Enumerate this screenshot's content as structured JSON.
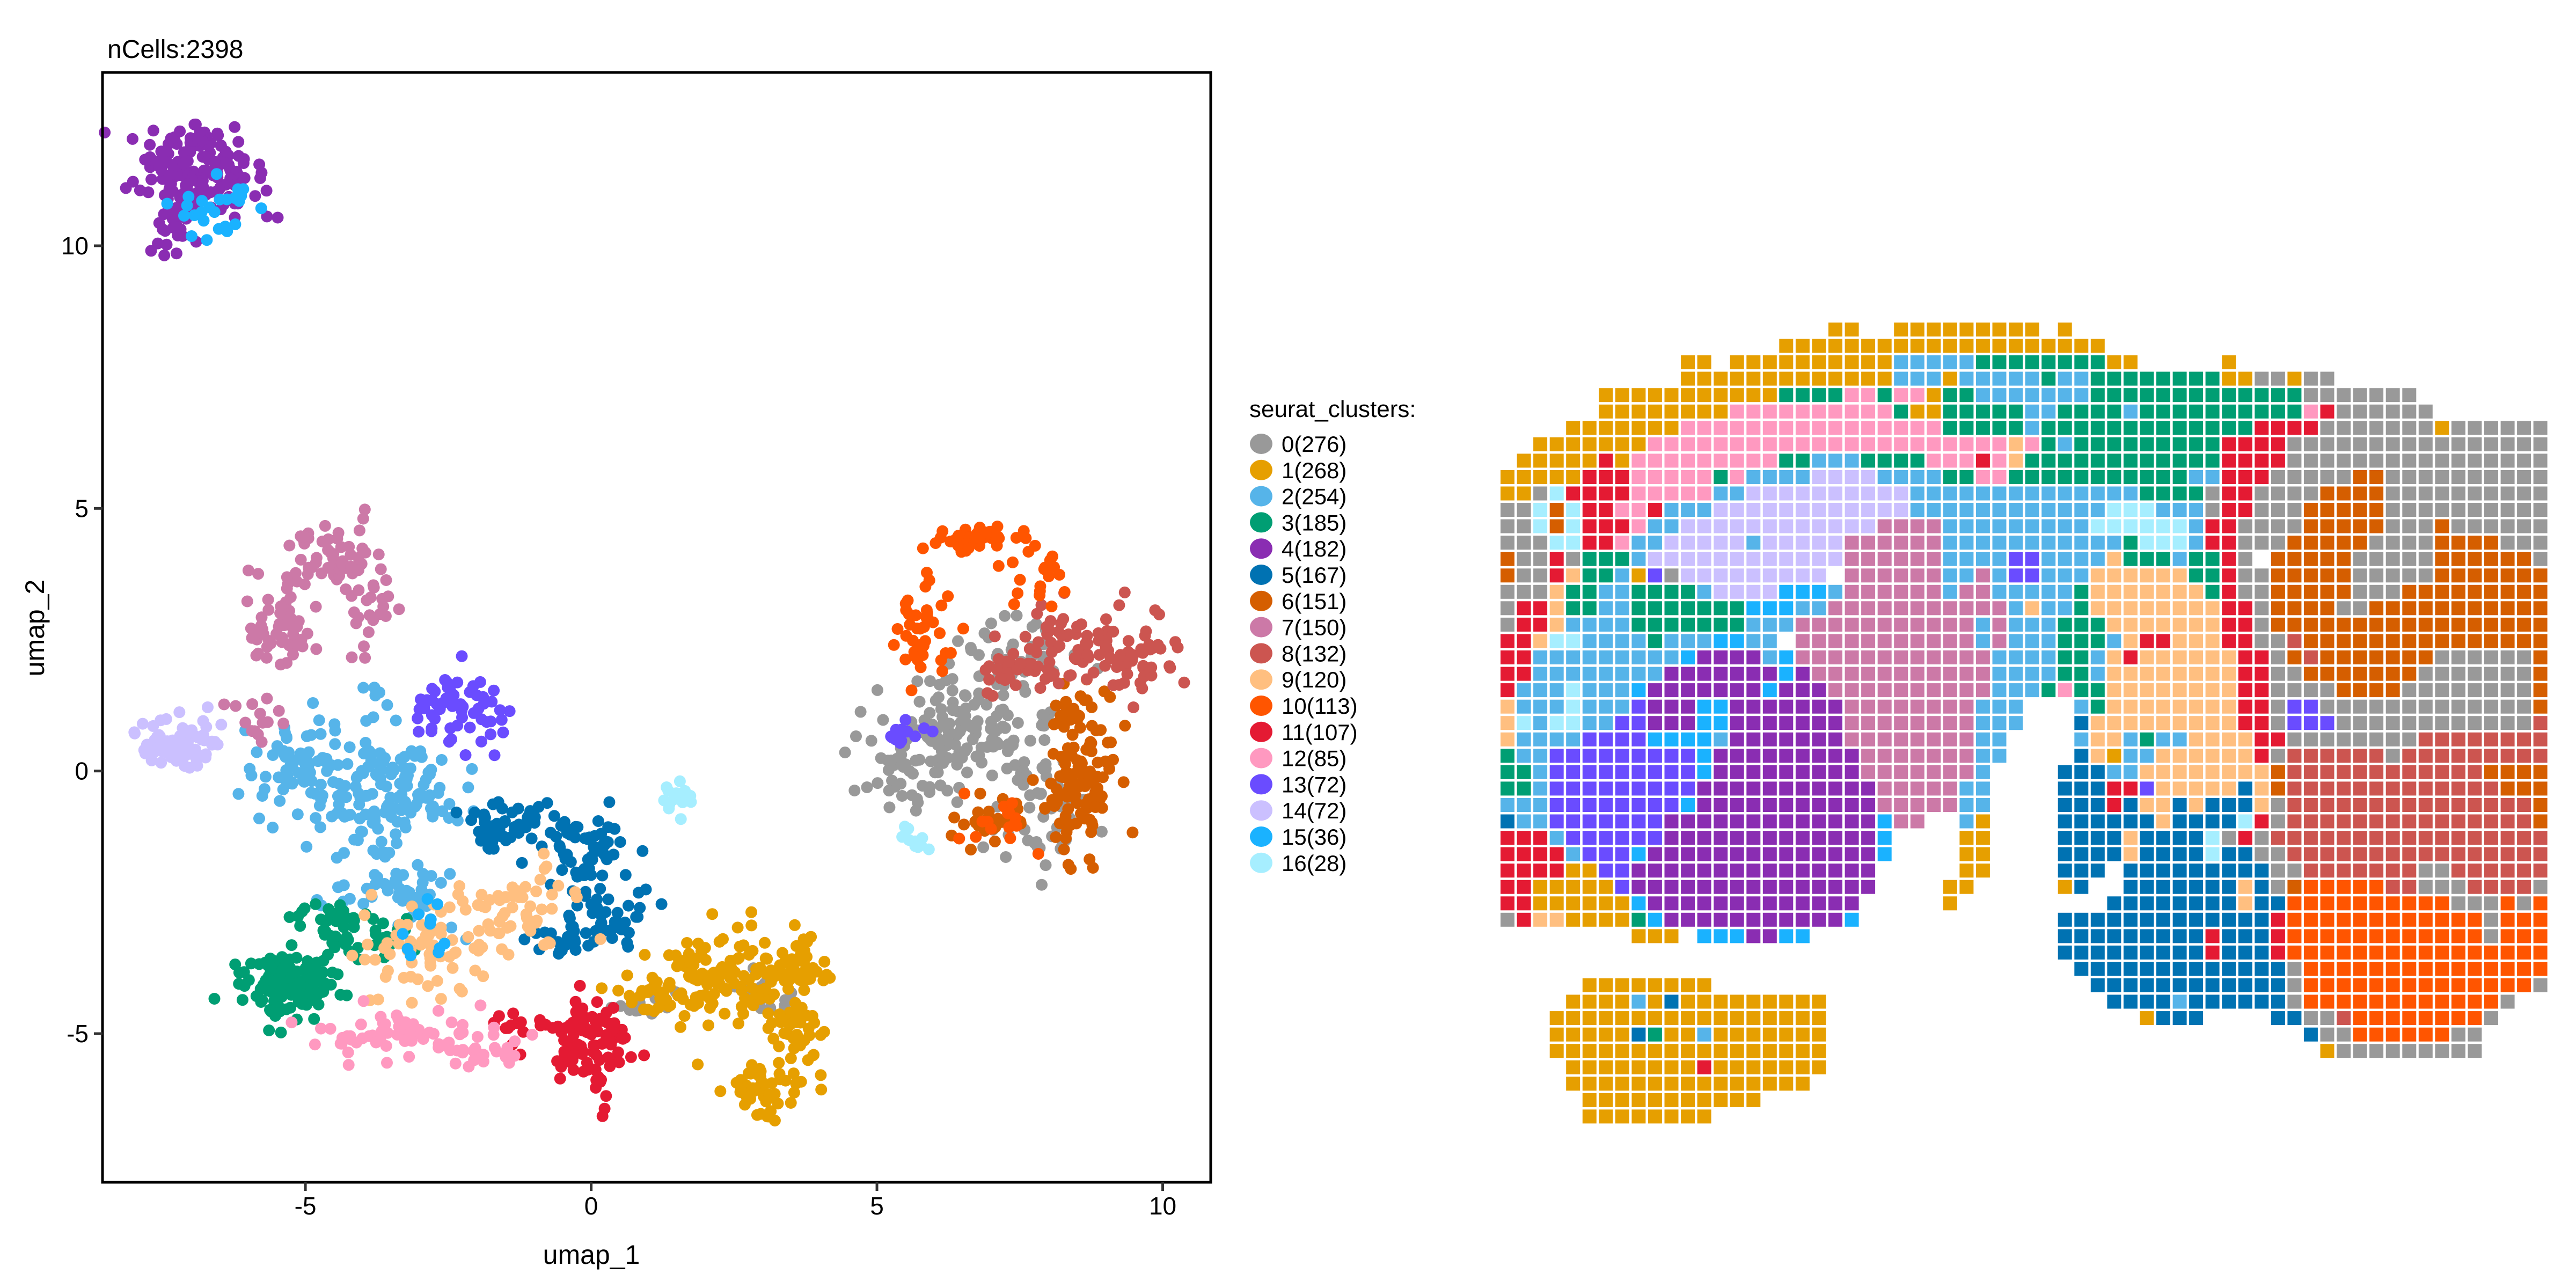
{
  "chart_data": [
    {
      "type": "scatter",
      "title": "nCells:2398",
      "xlabel": "umap_1",
      "ylabel": "umap_2",
      "xlim": [
        -8.55,
        10.84
      ],
      "ylim": [
        -7.83,
        13.3
      ],
      "xticks": [
        -5,
        0,
        5,
        10
      ],
      "yticks": [
        -5,
        0,
        5,
        10
      ],
      "grid": false,
      "legend": {
        "title": "seurat_clusters:",
        "placement": "right",
        "items": [
          "0(276)",
          "1(268)",
          "2(254)",
          "3(185)",
          "4(182)",
          "5(167)",
          "6(151)",
          "7(150)",
          "8(132)",
          "9(120)",
          "10(113)",
          "11(107)",
          "12(85)",
          "13(72)",
          "14(72)",
          "15(36)",
          "16(28)"
        ]
      },
      "clusters": [
        {
          "id": 0,
          "count": 276,
          "color": "#999999",
          "regions": [
            [
              6.3,
              0.6,
              0.8,
              0.6,
              0.55
            ],
            [
              7.9,
              -0.9,
              0.4,
              0.5,
              0.15
            ],
            [
              7.3,
              2.2,
              0.6,
              0.4,
              0.15
            ],
            [
              5.3,
              -0.3,
              0.3,
              0.3,
              0.05
            ],
            [
              2.9,
              -4.3,
              0.3,
              0.2,
              0.05
            ],
            [
              0.9,
              -4.4,
              0.3,
              0.15,
              0.05
            ]
          ]
        },
        {
          "id": 1,
          "count": 268,
          "color": "#E69F00",
          "regions": [
            [
              2.2,
              -3.9,
              0.7,
              0.4,
              0.4
            ],
            [
              3.5,
              -3.7,
              0.3,
              0.3,
              0.15
            ],
            [
              3.6,
              -5.0,
              0.25,
              0.4,
              0.15
            ],
            [
              3.1,
              -6.1,
              0.4,
              0.3,
              0.2
            ],
            [
              1.3,
              -4.3,
              0.3,
              0.2,
              0.1
            ]
          ]
        },
        {
          "id": 2,
          "count": 254,
          "color": "#56B4E9",
          "regions": [
            [
              -4.0,
              -0.5,
              0.6,
              0.9,
              0.5
            ],
            [
              -5.2,
              0.0,
              0.4,
              0.5,
              0.2
            ],
            [
              -2.8,
              -0.4,
              0.4,
              0.4,
              0.15
            ],
            [
              -3.2,
              -2.3,
              0.5,
              0.3,
              0.15
            ]
          ]
        },
        {
          "id": 3,
          "count": 185,
          "color": "#009E73",
          "regions": [
            [
              -5.3,
              -4.0,
              0.45,
              0.35,
              0.7
            ],
            [
              -4.5,
              -2.9,
              0.4,
              0.3,
              0.2
            ],
            [
              -3.6,
              -3.2,
              0.3,
              0.2,
              0.1
            ]
          ]
        },
        {
          "id": 4,
          "count": 182,
          "color": "#8A2DB2",
          "regions": [
            [
              -7.2,
              11.6,
              0.45,
              0.4,
              0.6
            ],
            [
              -6.3,
              11.1,
              0.5,
              0.4,
              0.25
            ],
            [
              -7.3,
              10.4,
              0.2,
              0.35,
              0.15
            ]
          ]
        },
        {
          "id": 5,
          "count": 167,
          "color": "#0072B2",
          "regions": [
            [
              -1.5,
              -1.0,
              0.4,
              0.25,
              0.3
            ],
            [
              -0.1,
              -1.5,
              0.4,
              0.4,
              0.35
            ],
            [
              0.4,
              -2.7,
              0.4,
              0.2,
              0.2
            ],
            [
              -0.4,
              -3.2,
              0.3,
              0.2,
              0.15
            ]
          ]
        },
        {
          "id": 6,
          "count": 151,
          "color": "#D55E00",
          "regions": [
            [
              8.6,
              -0.3,
              0.3,
              0.6,
              0.6
            ],
            [
              8.5,
              1.0,
              0.3,
              0.3,
              0.2
            ],
            [
              7.0,
              -0.9,
              0.4,
              0.3,
              0.2
            ]
          ]
        },
        {
          "id": 7,
          "count": 150,
          "color": "#CC79A7",
          "regions": [
            [
              -5.4,
              2.8,
              0.3,
              0.5,
              0.4
            ],
            [
              -4.5,
              4.1,
              0.4,
              0.3,
              0.35
            ],
            [
              -3.9,
              3.1,
              0.2,
              0.4,
              0.15
            ],
            [
              -5.9,
              1.0,
              0.3,
              0.3,
              0.1
            ]
          ]
        },
        {
          "id": 8,
          "count": 132,
          "color": "#CC5550",
          "regions": [
            [
              8.3,
              2.4,
              0.6,
              0.4,
              0.5
            ],
            [
              9.6,
              2.1,
              0.4,
              0.4,
              0.3
            ],
            [
              7.5,
              1.8,
              0.4,
              0.3,
              0.2
            ]
          ]
        },
        {
          "id": 9,
          "count": 120,
          "color": "#FFBF80",
          "regions": [
            [
              -3.0,
              -3.4,
              0.6,
              0.5,
              0.55
            ],
            [
              -1.2,
              -2.6,
              0.5,
              0.4,
              0.45
            ]
          ]
        },
        {
          "id": 10,
          "count": 113,
          "color": "#FF5500",
          "regions": [
            [
              5.7,
              2.6,
              0.25,
              0.5,
              0.35
            ],
            [
              6.8,
              4.4,
              0.5,
              0.15,
              0.35
            ],
            [
              7.7,
              3.7,
              0.3,
              0.3,
              0.15
            ],
            [
              7.0,
              -1.0,
              0.4,
              0.3,
              0.15
            ]
          ]
        },
        {
          "id": 11,
          "count": 107,
          "color": "#E41A33",
          "regions": [
            [
              0.0,
              -5.2,
              0.3,
              0.45,
              0.85
            ],
            [
              -1.3,
              -4.8,
              0.4,
              0.2,
              0.15
            ]
          ]
        },
        {
          "id": 12,
          "count": 85,
          "color": "#FF99C0",
          "regions": [
            [
              -3.7,
              -5.0,
              0.6,
              0.2,
              0.6
            ],
            [
              -2.0,
              -5.2,
              0.4,
              0.25,
              0.4
            ]
          ]
        },
        {
          "id": 13,
          "count": 72,
          "color": "#6A4CFF",
          "regions": [
            [
              -2.4,
              1.2,
              0.5,
              0.4,
              0.8
            ],
            [
              5.5,
              0.7,
              0.2,
              0.1,
              0.2
            ]
          ]
        },
        {
          "id": 14,
          "count": 72,
          "color": "#CBC0FF",
          "regions": [
            [
              -7.2,
              0.5,
              0.35,
              0.25,
              1.0
            ]
          ]
        },
        {
          "id": 15,
          "count": 36,
          "color": "#1AB2FF",
          "regions": [
            [
              -6.5,
              10.6,
              0.4,
              0.3,
              0.7
            ],
            [
              -2.8,
              -3.0,
              0.3,
              0.3,
              0.3
            ]
          ]
        },
        {
          "id": 16,
          "count": 28,
          "color": "#A6EEFF",
          "regions": [
            [
              1.5,
              -0.5,
              0.15,
              0.15,
              0.6
            ],
            [
              5.6,
              -1.3,
              0.15,
              0.15,
              0.4
            ]
          ]
        }
      ]
    },
    {
      "type": "heatmap",
      "description_of_encoding": "spot rows; each segment is 'colStart-colEnd:cluster'",
      "rows": [
        "20-21:1 24-32:1 34:1",
        "17-36:1",
        "11-12:1 14-23:1 24-28:2 29-36:3 37-38:1 44:1",
        "11-23:1 24-26:2 27:1 28-32:2 33:3 34-35:2 36-43:3 44-45:1 46-47:0 48:1 49-50:0",
        "6-16:1 17-20:3 21-22:12 23:3 24-25:12 26:1 27-28:3 29-35:2 36-48:3 49-55:0",
        "6-13:1 14-23:12 24:3 25-26:1 27-31:3 32-33:2 34-37:3 38:2 39-48:3 49:12 50:11 51-56:0",
        "4-10:1 11-26:12 27-31:3 32:2 33-45:3 46-49:11 50-56:0 57:1 58-63:0",
        "2-8:1 9-30:12 31:9 32:12 33:3 34:2 35-43:3 44-47:11 48-63:0",
        "1-5:1 6:11 7:1 8-16:12 17-18:3 19-21:2 22-25:3 26-28:12 29:11 30:12 31:9 32-43:3 44-47:11 48-63:0",
        "0-4:1 5-7:11 8-12:12 13:3 14:12 15-18:2 19-22:14 23-26:2 27-28:3 29-30:12 31-41:3 42-43:2 44-46:11 47-51:0 52-53:6 54-63:0",
        "0-1:1 2:0 3:16 4-7:11 8-12:12 13-14:2 15-24:14 25-38:2 39-42:3 43:0 44-45:11 46-49:0 50-53:6 54-63:0",
        "0-1:0 2:16 3:6 4:16 5-6:11 7-8:12 9:11 10-12:2 13-24:14 25-36:2 37-39:16 40-42:2 43:0 44-45:11 46-48:0 49-53:6 54-63:0",
        "0-1:0 2:16 3:6 4:16 5-7:11 8:12 9-10:2 11-22:14 23-26:7 27-35:2 36-41:16 42:2 43-44:11 45-48:0 49-53:6 54-56:0 57:6 58-63:0",
        "0-2:0 3-4:16 5-6:11 7:12 8-9:2 10-14:14 15:2 16-20:14 21-26:7 27-37:2 38:3 39-41:16 42:2 43-44:11 45-47:0 48-52:6 53-56:0 57-60:6 61-63:0",
        "0:6 1-2:0 3:11 4:0 5-7:3 8:2 9-20:14 21-26:7 27-30:2 31-32:13 33-36:2 37:9 38-40:3 41:2 42-43:3 44:11 45:0 47-51:6 52-56:0 57-62:6 63:0",
        "0:6 1-2:0 3:11 4:9 5-6:3 7:2 8:1 9:13 10:0 11-19:14 21-26:7 27-28:2 29:7 30:2 31-32:13 33-35:2 36-41:9 42-43:3 44:11 45-46:0 47-51:6 52-56:0 57-63:6",
        "0-2:0 3:9 4-5:3 6-7:2 8-11:3 12:2 13-16:14 17-19:15 20:2 21-26:7 27:2 28-29:7 30-34:2 35:3 36-42:9 43:3 44:11 45-46:0 47-51:6 52-54:0 55-63:6",
        "0:0 1-2:11 3:9 4-5:3 6-7:2 8-14:3 15-17:15 18-19:2 20-30:7 31:2 32:9 33-34:2 35:3 36-43:9 44-45:11 46:0 47-50:6 51-52:0 53-63:6",
        "0:0 1-2:11 3:9 4-7:2 8-14:3 15-17:2 18-28:7 29:2 30:7 31-33:2 34-36:3 37-43:9 44-45:11 46:0 47-63:6",
        "0-1:11 2:9 3-4:16 5-8:2 9:3 10-12:2 13-14:15 15-16:2 18-28:7 29:2 30:7 31-33:2 34-36:3 37:2 38:9 39-40:11 41-43:9 44-45:11 46-47:0 48:8 49-63:6",
        "0-1:11 2-10:2 11:15 12-15:4 16:2 17:15 18-29:7 30-33:2 34-35:3 36:2 37:9 38:11 39-44:9 45-46:11 47:0 48:6 49:8 50-56:6 57-62:0 63:6",
        "0-1:11 2-9:2 10-16:4 17:15 18:4 19-29:7 30-33:2 34-35:3 36:2 37-44:9 45-46:11 47-48:0 49-55:6 56-62:0 63:6",
        "0:11 1-3:2 4:16 5-7:2 8:15 9-15:4 16:15 17-19:4 20-29:7 30-32:2 33:3 34:12 35-36:3 37-44:9 45-46:11 47-50:0 51-54:6 55-62:0 63:6",
        "0:9 1-3:2 4:16 5-7:2 8:13 9-11:4 12-13:15 14-20:4 21-28:7 29-31:2 35:2 36:3 37-44:9 45-46:11 47:0 48-49:13 50-62:0 63:6",
        "0:9 1:16 2:2 3-4:16 5-6:2 7-8:13 9-11:4 12-13:15 14-20:4 21-28:7 29-31:2 35:5 36-44:9 45-46:11 47:0 48-50:13 51-62:0 63:8",
        "0:9 1-4:2 5-8:13 9-12:15 13:2 14-20:4 21-28:7 29-30:2 35:2 36-37:9 38:2 39:3 40-41:2 42-45:9 46-47:11 48-55:0 56-63:8",
        "0:3 1-2:2 3-11:13 12:15 13-21:4 22-28:7 29-30:2 35:5 36:9 37:1 38-39:2 40-45:9 46:11 47:0 48-53:8 54:0 55-63:8",
        "0-1:3 2:2 3-11:13 12:15 13-21:4 22-28:7 29:2 34-36:5 37-38:2 39-46:9 47:6 48-59:8 60-63:6",
        "0-1:3 2:2 3-11:13 12-22:4 23-27:7 28-29:2 34-36:5 37-38:11 39:13 40-44:9 45:5 46:9 47:6 48-60:8 61-63:6",
        "0-2:2 3-10:13 11:15 12-22:4 23-27:7 28-29:2 34-36:5 37:11 38:5 39-40:9 41:5 42:9 43-45:5 46:9 47:0 48-62:8 63:6",
        "0:5 1-2:2 3-9:13 10-22:4 23:15 24-25:7 28:2 29:1 34-39:5 40:9 41-44:5 45:16 46:11 47:0 48-62:8 63:6",
        "0-2:11 3:2 4-9:13 10-22:4 23:15 28-29:1 34-37:5 38:9 39-42:5 43:16 44:0 45:11 46:0 47-63:8",
        "0-3:11 4:2 5-7:13 8:15 9-22:4 23:15 28-29:1 34-37:5 38:9 39-42:5 43:16 44-45:5 46-47:0 48-63:8",
        "0-3:11 4-5:1 6-7:13 8-22:4 28-29:1 34-36:5 38-46:5 47-48:0 49-55:8 56-57:0 58-63:8",
        "0-1:11 2-6:1 7:13 8-22:4 27-28:1 34:1 35:5 38-44:5 45:9 46:5 47:0 48:6 49-53:10 54-55:8 56-58:0 59-62:8 63:0",
        "0-1:11 2-7:1 8:15 9-21:4 27:1 37-44:5 45:9 46-47:5 48-57:10 58-60:0 61:10 62:0 63:10",
        "0:0 1:11 2-3:9 4-7:1 8:3 9:15 10-20:4 21:15 34-46:5 47:11 48-59:10 60:0 61-63:10",
        "8-10:1 12-14:15 15-16:4 17-18:15 34-42:5 43:11 44-46:5 47:11 48-59:10 60:0 61-63:10",
        "34-42:5 43:11 44-46:5 47:11 48-63:10",
        "35-47:5 48:0 49-63:10",
        "5-12:1 36-47:5 48:0 49-62:10 63:0",
        "4-7:1 8:2 9:1 10:5 11-19:1 37-40:5 41:2 42-47:5 48:0 49-60:10 61:0",
        "3-19:1 39:1 40-42:5 47-48:5 49-50:0 51:8 52-59:10 60:0",
        "3-7:1 8:5 9:3 10-11:1 12:2 13-19:1 49:5 50-51:0 52-57:10 58-59:0",
        "3-19:1 50:1 51-59:0",
        "4-11:1 12:11 13-19:1",
        "4-18:1",
        "5-15:1",
        "5-12:1"
      ]
    }
  ]
}
